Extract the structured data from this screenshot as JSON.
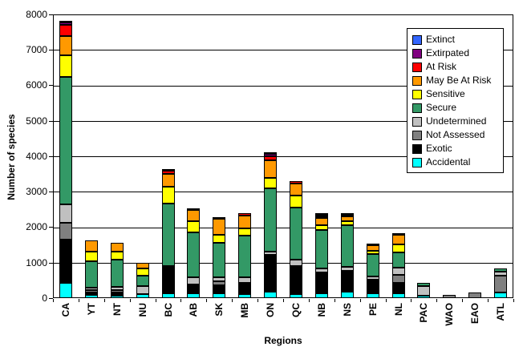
{
  "axes": {
    "ylabel": "Number of species",
    "xlabel": "Regions"
  },
  "chart_data": {
    "type": "stacked-bar",
    "title": "",
    "xlabel": "Regions",
    "ylabel": "Number of species",
    "ylim": [
      0,
      8000
    ],
    "ytick_step": 1000,
    "grid": true,
    "legend_position": "top-right-inside",
    "categories": [
      "CA",
      "YT",
      "NT",
      "NU",
      "BC",
      "AB",
      "SK",
      "MB",
      "ON",
      "QC",
      "NB",
      "NS",
      "PE",
      "NL",
      "PAC",
      "WAO",
      "EAO",
      "ATL"
    ],
    "series": [
      {
        "name": "Extinct",
        "color": "#3366FF",
        "values": [
          15,
          0,
          0,
          0,
          0,
          0,
          0,
          0,
          25,
          0,
          20,
          0,
          0,
          0,
          0,
          0,
          0,
          0
        ]
      },
      {
        "name": "Extirpated",
        "color": "#800080",
        "values": [
          60,
          0,
          0,
          0,
          10,
          0,
          0,
          0,
          60,
          0,
          35,
          30,
          0,
          0,
          0,
          0,
          0,
          0
        ]
      },
      {
        "name": "At Risk",
        "color": "#FF0000",
        "values": [
          315,
          0,
          0,
          0,
          80,
          25,
          25,
          70,
          130,
          65,
          55,
          45,
          25,
          15,
          0,
          0,
          0,
          0
        ]
      },
      {
        "name": "May Be At Risk",
        "color": "#FF9900",
        "values": [
          550,
          325,
          230,
          175,
          360,
          310,
          460,
          350,
          500,
          330,
          200,
          130,
          160,
          250,
          0,
          0,
          0,
          0
        ]
      },
      {
        "name": "Sensitive",
        "color": "#FFFF00",
        "values": [
          615,
          250,
          230,
          190,
          495,
          325,
          230,
          205,
          280,
          335,
          130,
          120,
          105,
          230,
          0,
          0,
          0,
          0
        ]
      },
      {
        "name": "Secure",
        "color": "#339966",
        "values": [
          3580,
          760,
          765,
          305,
          1755,
          1260,
          955,
          1180,
          1780,
          1470,
          1090,
          1175,
          625,
          435,
          100,
          0,
          0,
          100
        ]
      },
      {
        "name": "Undetermined",
        "color": "#C0C0C0",
        "values": [
          535,
          75,
          105,
          215,
          30,
          215,
          115,
          165,
          100,
          175,
          110,
          120,
          95,
          205,
          280,
          0,
          0,
          115
        ]
      },
      {
        "name": "Not Assessed",
        "color": "#808080",
        "values": [
          460,
          50,
          60,
          0,
          46,
          0,
          115,
          0,
          0,
          0,
          0,
          0,
          0,
          215,
          0,
          85,
          160,
          470
        ]
      },
      {
        "name": "Exotic",
        "color": "#000000",
        "values": [
          1225,
          80,
          100,
          0,
          690,
          245,
          230,
          305,
          1045,
          795,
          595,
          590,
          380,
          305,
          0,
          0,
          0,
          0
        ]
      },
      {
        "name": "Accidental",
        "color": "#00FFFF",
        "values": [
          430,
          85,
          60,
          115,
          135,
          135,
          135,
          120,
          175,
          120,
          135,
          175,
          135,
          135,
          60,
          0,
          0,
          160
        ]
      }
    ],
    "ytick_labels": [
      "0",
      "1000",
      "2000",
      "3000",
      "4000",
      "5000",
      "6000",
      "7000",
      "8000"
    ]
  },
  "layout_colors": {
    "background": "#FFFFFF",
    "gridline": "#000000",
    "axis": "#000000"
  }
}
